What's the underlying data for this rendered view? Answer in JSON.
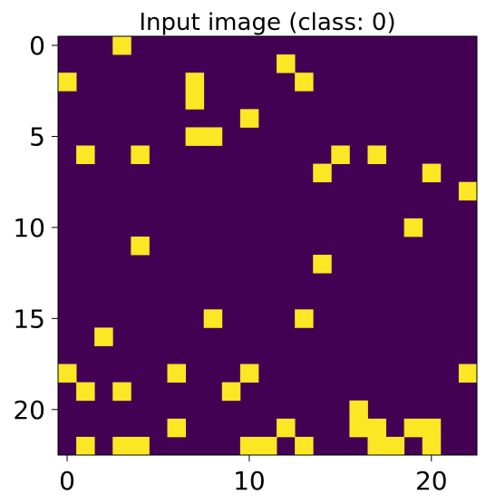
{
  "chart_data": {
    "type": "heatmap",
    "title": "Input image (class: 0)",
    "xlabel": "",
    "ylabel": "",
    "rows": 23,
    "cols": 23,
    "xlim": [
      -0.5,
      22.5
    ],
    "ylim": [
      22.5,
      -0.5
    ],
    "x_ticks": [
      0,
      10,
      20
    ],
    "y_ticks": [
      0,
      5,
      10,
      15,
      20
    ],
    "values": [
      0,
      1
    ],
    "colors": {
      "0": "#440154",
      "1": "#fde725"
    },
    "on_cells": [
      [
        0,
        3
      ],
      [
        1,
        12
      ],
      [
        2,
        0
      ],
      [
        2,
        7
      ],
      [
        2,
        13
      ],
      [
        3,
        7
      ],
      [
        4,
        10
      ],
      [
        5,
        7
      ],
      [
        5,
        8
      ],
      [
        6,
        1
      ],
      [
        6,
        4
      ],
      [
        6,
        15
      ],
      [
        6,
        17
      ],
      [
        7,
        14
      ],
      [
        7,
        20
      ],
      [
        8,
        22
      ],
      [
        10,
        19
      ],
      [
        11,
        4
      ],
      [
        12,
        14
      ],
      [
        15,
        8
      ],
      [
        15,
        13
      ],
      [
        16,
        2
      ],
      [
        18,
        0
      ],
      [
        18,
        6
      ],
      [
        18,
        10
      ],
      [
        18,
        22
      ],
      [
        19,
        1
      ],
      [
        19,
        3
      ],
      [
        19,
        9
      ],
      [
        20,
        16
      ],
      [
        21,
        6
      ],
      [
        21,
        12
      ],
      [
        21,
        16
      ],
      [
        21,
        17
      ],
      [
        21,
        19
      ],
      [
        21,
        20
      ],
      [
        22,
        1
      ],
      [
        22,
        3
      ],
      [
        22,
        4
      ],
      [
        22,
        10
      ],
      [
        22,
        11
      ],
      [
        22,
        13
      ],
      [
        22,
        17
      ],
      [
        22,
        18
      ],
      [
        22,
        20
      ]
    ]
  }
}
